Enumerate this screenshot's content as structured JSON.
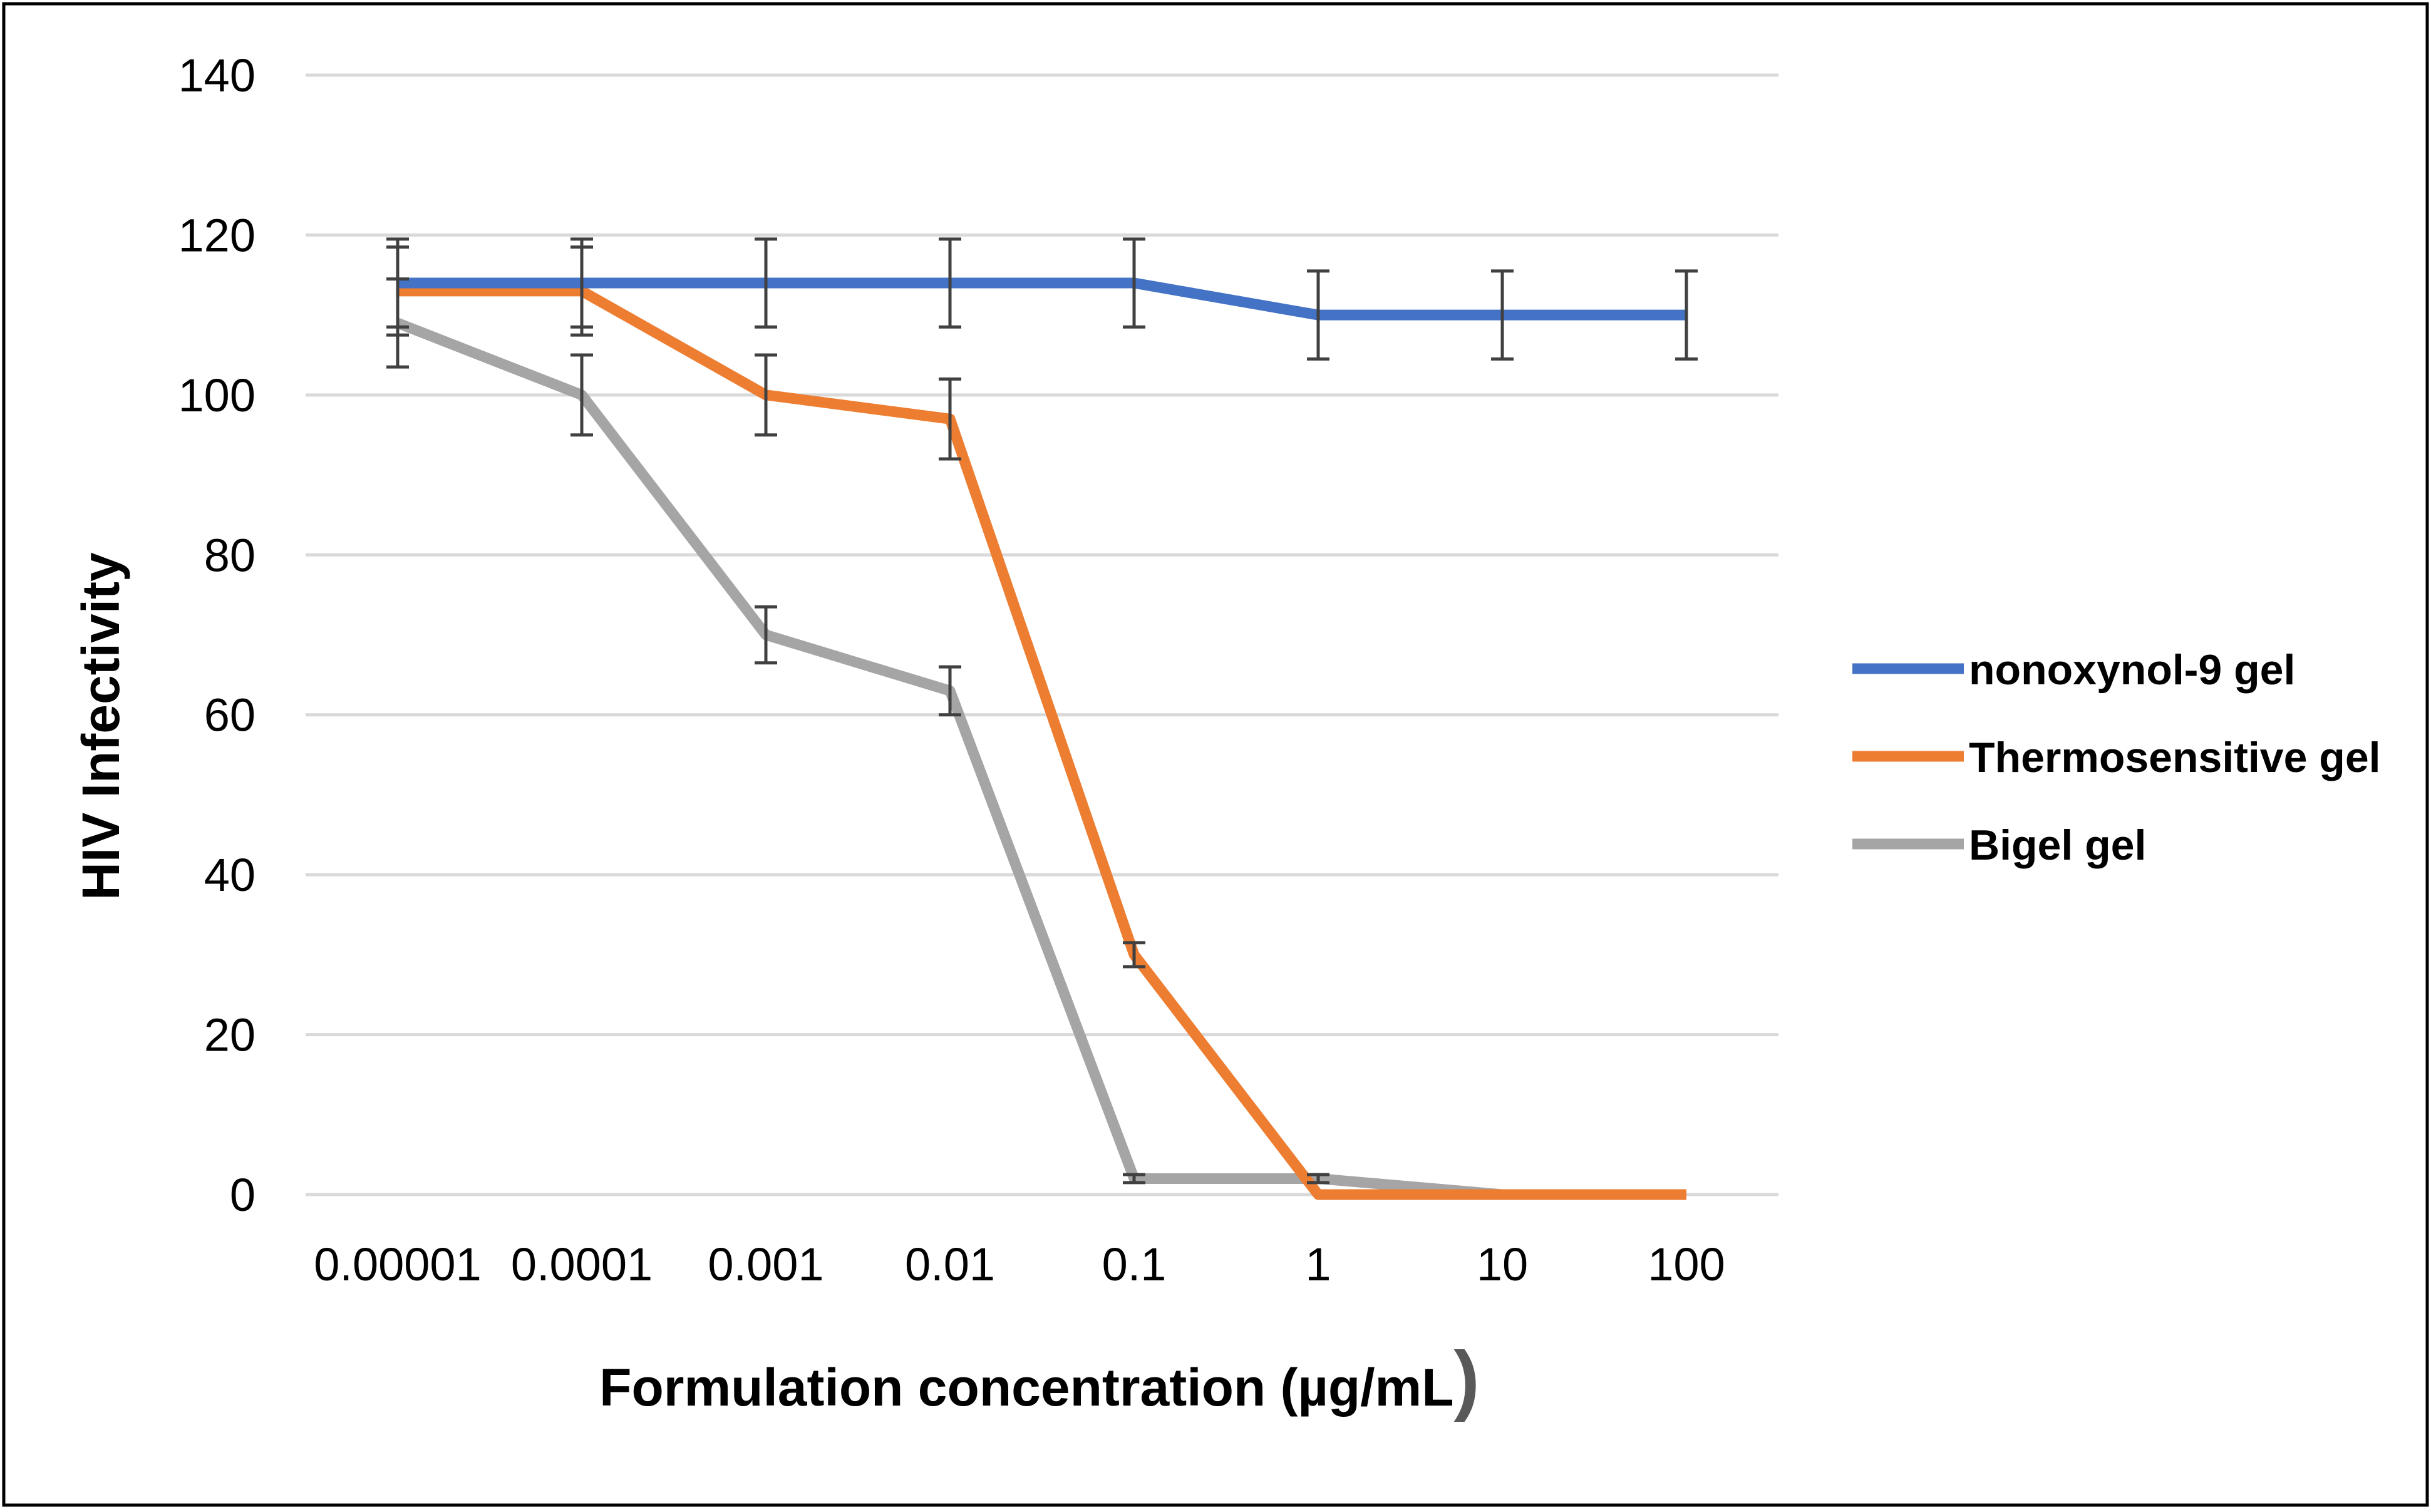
{
  "chart_data": {
    "type": "line",
    "xlabel": "Formulation concentration (µg/mL",
    "xlabel_close": ")",
    "ylabel": "HIV Infectivity",
    "categories": [
      "0.00001",
      "0.0001",
      "0.001",
      "0.01",
      "0.1",
      "1",
      "10",
      "100"
    ],
    "ylim": [
      0,
      140
    ],
    "yticks": [
      0,
      20,
      40,
      60,
      80,
      100,
      120,
      140
    ],
    "grid": true,
    "legend_position": "right",
    "series": [
      {
        "name": "nonoxynol-9 gel",
        "color": "#4472C4",
        "values": [
          114,
          114,
          114,
          114,
          114,
          110,
          110,
          110
        ],
        "error": [
          5.5,
          5.5,
          5.5,
          5.5,
          5.5,
          5.5,
          5.5,
          5.5
        ]
      },
      {
        "name": "Thermosensitive gel",
        "color": "#ED7D31",
        "values": [
          113,
          113,
          100,
          97,
          30,
          0,
          0,
          0
        ],
        "error": [
          5.5,
          5.5,
          5,
          5,
          1.5,
          0,
          0,
          0
        ]
      },
      {
        "name": "Bigel gel",
        "color": "#A5A5A5",
        "values": [
          109,
          100,
          70,
          63,
          2,
          2,
          0,
          0
        ],
        "error": [
          5.5,
          5,
          3.5,
          3,
          0.5,
          0.5,
          0,
          0
        ]
      }
    ],
    "error_bar_color": "#404040",
    "grid_color": "#D9D9D9"
  }
}
